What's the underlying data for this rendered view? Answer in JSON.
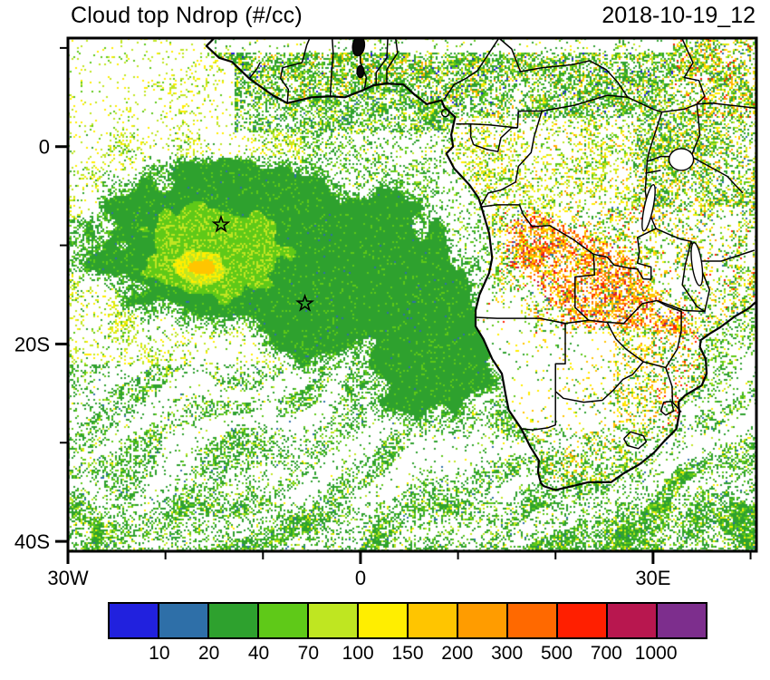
{
  "chart_data": {
    "type": "heatmap",
    "title": "Cloud top Ndrop (#/cc)",
    "timestamp": "2018-10-19_12",
    "variable": "Cloud top droplet number concentration",
    "units": "#/cc",
    "region": "South Atlantic Ocean and southern Africa",
    "basemap": "Africa coastline with national borders and lakes",
    "lon_range": [
      -30,
      40.6
    ],
    "lat_range": [
      -41,
      11
    ],
    "grid": false,
    "xticks": [
      {
        "lon": -30,
        "label": "30W"
      },
      {
        "lon": 0,
        "label": "0"
      },
      {
        "lon": 30,
        "label": "30E"
      }
    ],
    "yticks": [
      {
        "lat": 0,
        "label": "0"
      },
      {
        "lat": -20,
        "label": "20S"
      },
      {
        "lat": -40,
        "label": "40S"
      }
    ],
    "minor_tick_deg": 10,
    "colorbar": {
      "orientation": "horizontal",
      "levels": [
        10,
        20,
        40,
        70,
        100,
        150,
        200,
        300,
        500,
        700,
        1000
      ],
      "colors": [
        "#2121de",
        "#2e6fa8",
        "#2ea12e",
        "#5fc918",
        "#bfe621",
        "#ffee00",
        "#ffc500",
        "#ff9c00",
        "#ff6900",
        "#ff1f00",
        "#b8174f",
        "#7d2e8d"
      ]
    },
    "markers": [
      {
        "name": "ascension-island",
        "symbol": "star",
        "lon": -14.3,
        "lat": -7.9
      },
      {
        "name": "st-helena",
        "symbol": "star",
        "lon": -5.7,
        "lat": -15.9
      }
    ],
    "features": [
      "Large marine stratocumulus deck (Ndrop ~40-150 #/cc, green) over the southeast Atlantic between ~2S-22S",
      "Lighter green / yellow (70-200 #/cc) core with a small orange patch (~300 #/cc) near 16W, 12S",
      "Sparse yellow-green speckle field over the tropical Atlantic north of the deck",
      "Wavy green cloud streets over the Southern Ocean south of ~22S",
      "Scattered yellow/orange/red high-Ndrop pixels (150-1000 #/cc) over Angola, Zambia, Zimbabwe and East Africa",
      "Mostly cloud-free (white) Namib and Kalahari deserts"
    ]
  }
}
